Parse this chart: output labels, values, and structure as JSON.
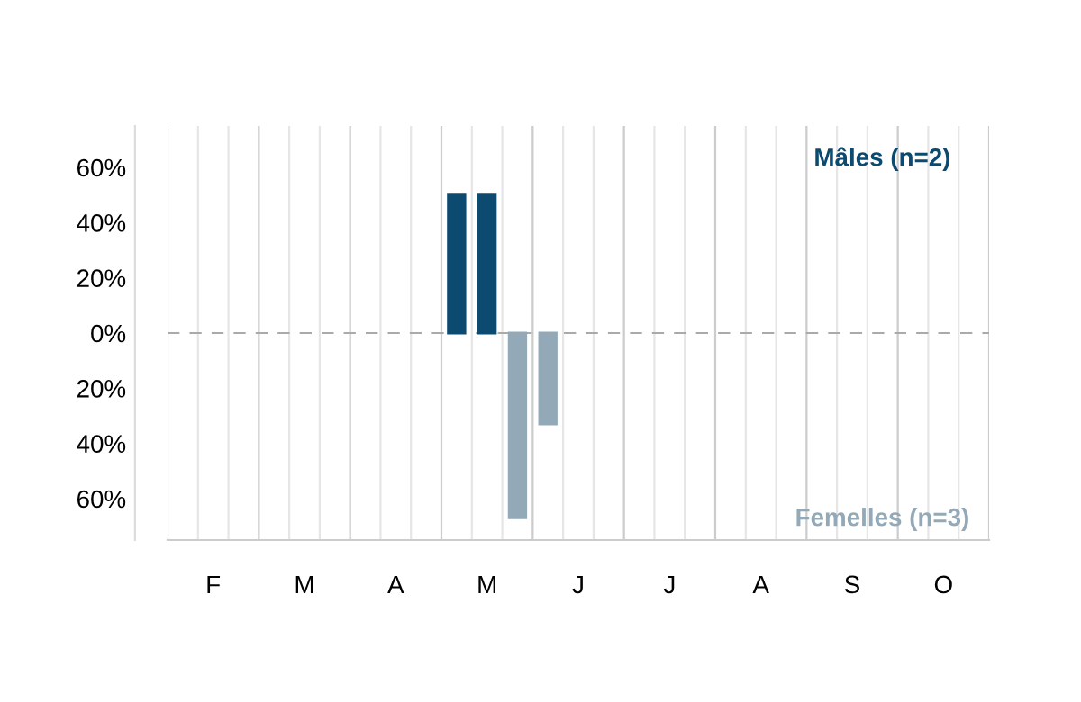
{
  "chart_data": {
    "type": "bar",
    "categories": [
      null,
      "F",
      null,
      null,
      "M",
      null,
      null,
      "A",
      null,
      null,
      "M",
      null,
      null,
      "J",
      null,
      null,
      "J",
      null,
      null,
      "A",
      null,
      null,
      "S",
      null,
      null,
      "O",
      null
    ],
    "series": [
      {
        "name": "Mâles (n=2)",
        "color": "#0d4a70",
        "values": [
          null,
          null,
          null,
          null,
          null,
          null,
          null,
          null,
          null,
          50,
          50,
          null,
          null,
          null,
          null,
          null,
          null,
          null,
          null,
          null,
          null,
          null,
          null,
          null,
          null,
          null,
          null
        ]
      },
      {
        "name": "Femelles (n=3)",
        "color": "#93a9b7",
        "values": [
          null,
          null,
          null,
          null,
          null,
          null,
          null,
          null,
          null,
          null,
          null,
          -67,
          -33,
          null,
          null,
          null,
          null,
          null,
          null,
          null,
          null,
          null,
          null,
          null,
          null,
          null,
          null
        ]
      }
    ],
    "ylim": [
      -75,
      75
    ],
    "yticks": [
      {
        "value": -60,
        "label": "60%"
      },
      {
        "value": -40,
        "label": "40%"
      },
      {
        "value": -20,
        "label": "20%"
      },
      {
        "value": 0,
        "label": "0%"
      },
      {
        "value": 20,
        "label": "20%"
      },
      {
        "value": 40,
        "label": "40%"
      },
      {
        "value": 60,
        "label": "60%"
      }
    ],
    "ref_lines": [
      {
        "axis": "y",
        "value": 0,
        "color": "#aaaaaa",
        "line_style": "dashed"
      }
    ],
    "grid": "x",
    "legend": false
  }
}
